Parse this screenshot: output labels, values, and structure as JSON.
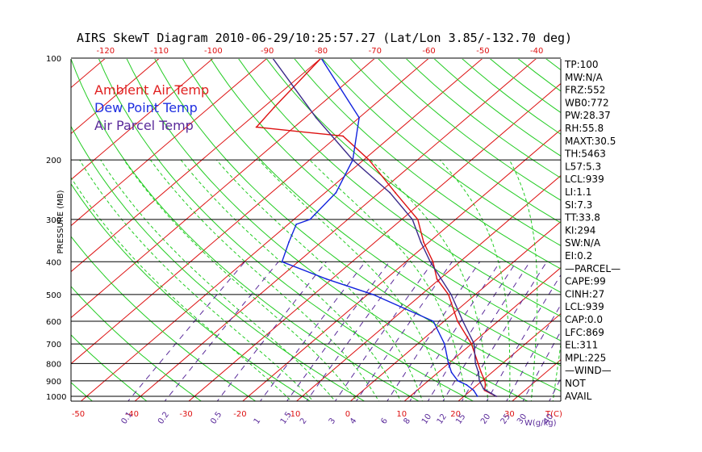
{
  "chart_data": {
    "type": "line",
    "title": "AIRS SkewT Diagram 2010-06-29/10:25:57.27 (Lat/Lon 3.85/-132.70 deg)",
    "ylabel": "PRESSURE (MB)",
    "xlabel_unit": "T(C)",
    "mixing_ratio_unit": "W(g/kg)",
    "ylim": [
      1000,
      100
    ],
    "y_scale": "log",
    "pressure_ticks": [
      "100",
      "200",
      "300",
      "400",
      "500",
      "600",
      "700",
      "800",
      "900",
      "1000"
    ],
    "bottom_temp_ticks": [
      "-50",
      "-40",
      "-30",
      "-20",
      "-10",
      "0",
      "10",
      "20",
      "30"
    ],
    "top_temp_ticks": [
      "-120",
      "-110",
      "-100",
      "-90",
      "-80",
      "-70",
      "-60",
      "-50",
      "-40"
    ],
    "mixing_ratio_labels": [
      "0.1",
      "0.2",
      "0.5",
      "1",
      "1.5",
      "2",
      "3",
      "4",
      "6",
      "8",
      "10",
      "12",
      "15",
      "20",
      "25",
      "30",
      "40"
    ],
    "legend": [
      {
        "name": "Ambient Air Temp",
        "color": "#e02020"
      },
      {
        "name": "Dew Point Temp",
        "color": "#1f2fe0"
      },
      {
        "name": "Air Parcel Temp",
        "color": "#5a2a9a"
      }
    ],
    "series": [
      {
        "name": "Ambient Air Temp",
        "color": "#dd1111",
        "points": [
          [
            1000,
            26
          ],
          [
            960,
            22.5
          ],
          [
            925,
            21.5
          ],
          [
            900,
            20.5
          ],
          [
            850,
            18
          ],
          [
            800,
            15.5
          ],
          [
            700,
            10
          ],
          [
            600,
            2.5
          ],
          [
            500,
            -5
          ],
          [
            450,
            -10.5
          ],
          [
            400,
            -15
          ],
          [
            350,
            -21
          ],
          [
            300,
            -27
          ],
          [
            250,
            -37
          ],
          [
            200,
            -49
          ],
          [
            170,
            -59
          ],
          [
            160,
            -77
          ],
          [
            140,
            -78
          ],
          [
            100,
            -80
          ]
        ]
      },
      {
        "name": "Dew Point Temp",
        "color": "#1122dd",
        "points": [
          [
            1000,
            22.5
          ],
          [
            960,
            20.5
          ],
          [
            925,
            18
          ],
          [
            900,
            15.5
          ],
          [
            850,
            12.5
          ],
          [
            800,
            10
          ],
          [
            700,
            5
          ],
          [
            600,
            -2
          ],
          [
            500,
            -19
          ],
          [
            450,
            -31
          ],
          [
            400,
            -43
          ],
          [
            350,
            -46
          ],
          [
            310,
            -48.5
          ],
          [
            300,
            -47
          ],
          [
            250,
            -48
          ],
          [
            200,
            -52
          ],
          [
            150,
            -60
          ],
          [
            100,
            -80
          ]
        ]
      },
      {
        "name": "Air Parcel Temp",
        "color": "#3a2a8a",
        "points": [
          [
            1000,
            26
          ],
          [
            950,
            22
          ],
          [
            900,
            19.5
          ],
          [
            850,
            17.5
          ],
          [
            800,
            15
          ],
          [
            700,
            10.5
          ],
          [
            600,
            3.5
          ],
          [
            500,
            -4.5
          ],
          [
            400,
            -15.5
          ],
          [
            350,
            -21.5
          ],
          [
            300,
            -28
          ],
          [
            250,
            -38
          ],
          [
            200,
            -52
          ],
          [
            150,
            -68
          ],
          [
            100,
            -89
          ]
        ]
      }
    ],
    "grid": true
  },
  "stats": [
    "TP:100",
    "MW:N/A",
    "FRZ:552",
    "WB0:772",
    "PW:28.37",
    "RH:55.8",
    "MAXT:30.5",
    "TH:5463",
    "L57:5.3",
    "LCL:939",
    "LI:1.1",
    "SI:7.3",
    "TT:33.8",
    "KI:294",
    "SW:N/A",
    "EI:0.2",
    "—PARCEL—",
    "CAPE:99",
    "CINH:27",
    "LCL:939",
    "CAP:0.0",
    "LFC:869",
    "EL:311",
    "MPL:225",
    "—WIND—",
    "NOT",
    "AVAIL"
  ],
  "colors": {
    "isotherm": "#dd1111",
    "dry_adiabat": "#22cc22",
    "moist_adiabat": "#22cc22",
    "mixing_ratio": "#5a2a9a",
    "top_axis": "#dd1111",
    "bottom_axis": "#dd1111",
    "mix_labels": "#5a2a9a"
  }
}
